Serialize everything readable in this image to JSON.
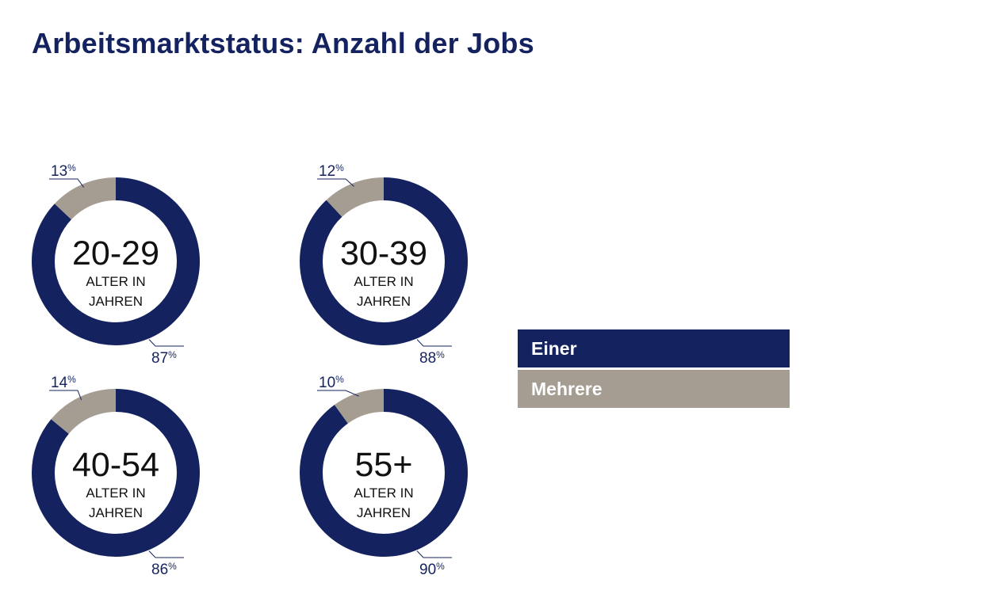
{
  "title": "Arbeitsmarktstatus: Anzahl der Jobs",
  "colors": {
    "einer": "#14235f",
    "mehrere": "#a59d92",
    "label": "#14235f"
  },
  "legend": [
    {
      "label": "Einer",
      "color": "#14235f"
    },
    {
      "label": "Mehrere",
      "color": "#a59d92"
    }
  ],
  "chart_data": {
    "type": "pie",
    "series": [
      "Einer",
      "Mehrere"
    ],
    "charts": [
      {
        "group": "20-29",
        "sublabel": [
          "ALTER IN",
          "JAHREN"
        ],
        "einer": 87,
        "mehrere": 13
      },
      {
        "group": "30-39",
        "sublabel": [
          "ALTER IN",
          "JAHREN"
        ],
        "einer": 88,
        "mehrere": 12
      },
      {
        "group": "40-54",
        "sublabel": [
          "ALTER IN",
          "JAHREN"
        ],
        "einer": 86,
        "mehrere": 14
      },
      {
        "group": "55+",
        "sublabel": [
          "ALTER IN",
          "JAHREN"
        ],
        "einer": 90,
        "mehrere": 10
      }
    ],
    "unit": "%"
  }
}
